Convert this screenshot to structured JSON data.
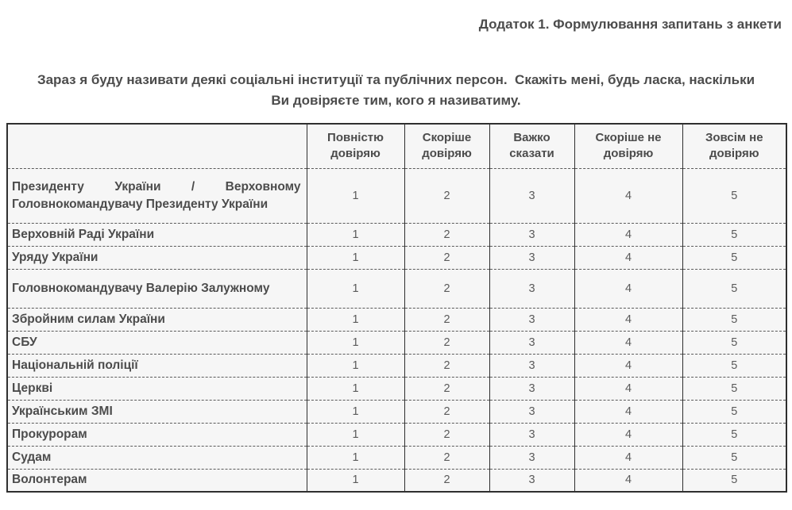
{
  "page": {
    "title": "Додаток 1. Формулювання запитань з анкети",
    "intro": "Зараз я буду називати деякі соціальні інституції та публічних персон.  Скажіть мені, будь ласка, наскільки Ви довіряєте тим, кого я називатиму."
  },
  "colors": {
    "text": "#4c4c4c",
    "value_text": "#5a5a5a",
    "border_solid": "#2f2f2f",
    "border_dashed": "#5a5a5a",
    "cell_background": "#f6f6f6",
    "page_background": "#ffffff"
  },
  "table": {
    "header": [
      "",
      "Повністю довіряю",
      "Скоріше довіряю",
      "Важко сказати",
      "Скоріше не довіряю",
      "Зовсім не довіряю"
    ],
    "rows": [
      {
        "label": "Президенту України / Верховному Головнокомандувачу Президенту України",
        "values": [
          "1",
          "2",
          "3",
          "4",
          "5"
        ]
      },
      {
        "label": "Верховній Раді України",
        "values": [
          "1",
          "2",
          "3",
          "4",
          "5"
        ]
      },
      {
        "label": "Уряду України",
        "values": [
          "1",
          "2",
          "3",
          "4",
          "5"
        ]
      },
      {
        "label": "Головнокомандувачу Валерію Залужному",
        "values": [
          "1",
          "2",
          "3",
          "4",
          "5"
        ]
      },
      {
        "label": "Збройним силам України",
        "values": [
          "1",
          "2",
          "3",
          "4",
          "5"
        ]
      },
      {
        "label": "СБУ",
        "values": [
          "1",
          "2",
          "3",
          "4",
          "5"
        ]
      },
      {
        "label": "Національній поліції",
        "values": [
          "1",
          "2",
          "3",
          "4",
          "5"
        ]
      },
      {
        "label": "Церкві",
        "values": [
          "1",
          "2",
          "3",
          "4",
          "5"
        ]
      },
      {
        "label": "Українським ЗМІ",
        "values": [
          "1",
          "2",
          "3",
          "4",
          "5"
        ]
      },
      {
        "label": "Прокурорам",
        "values": [
          "1",
          "2",
          "3",
          "4",
          "5"
        ]
      },
      {
        "label": "Судам",
        "values": [
          "1",
          "2",
          "3",
          "4",
          "5"
        ]
      },
      {
        "label": "Волонтерам",
        "values": [
          "1",
          "2",
          "3",
          "4",
          "5"
        ]
      }
    ]
  }
}
